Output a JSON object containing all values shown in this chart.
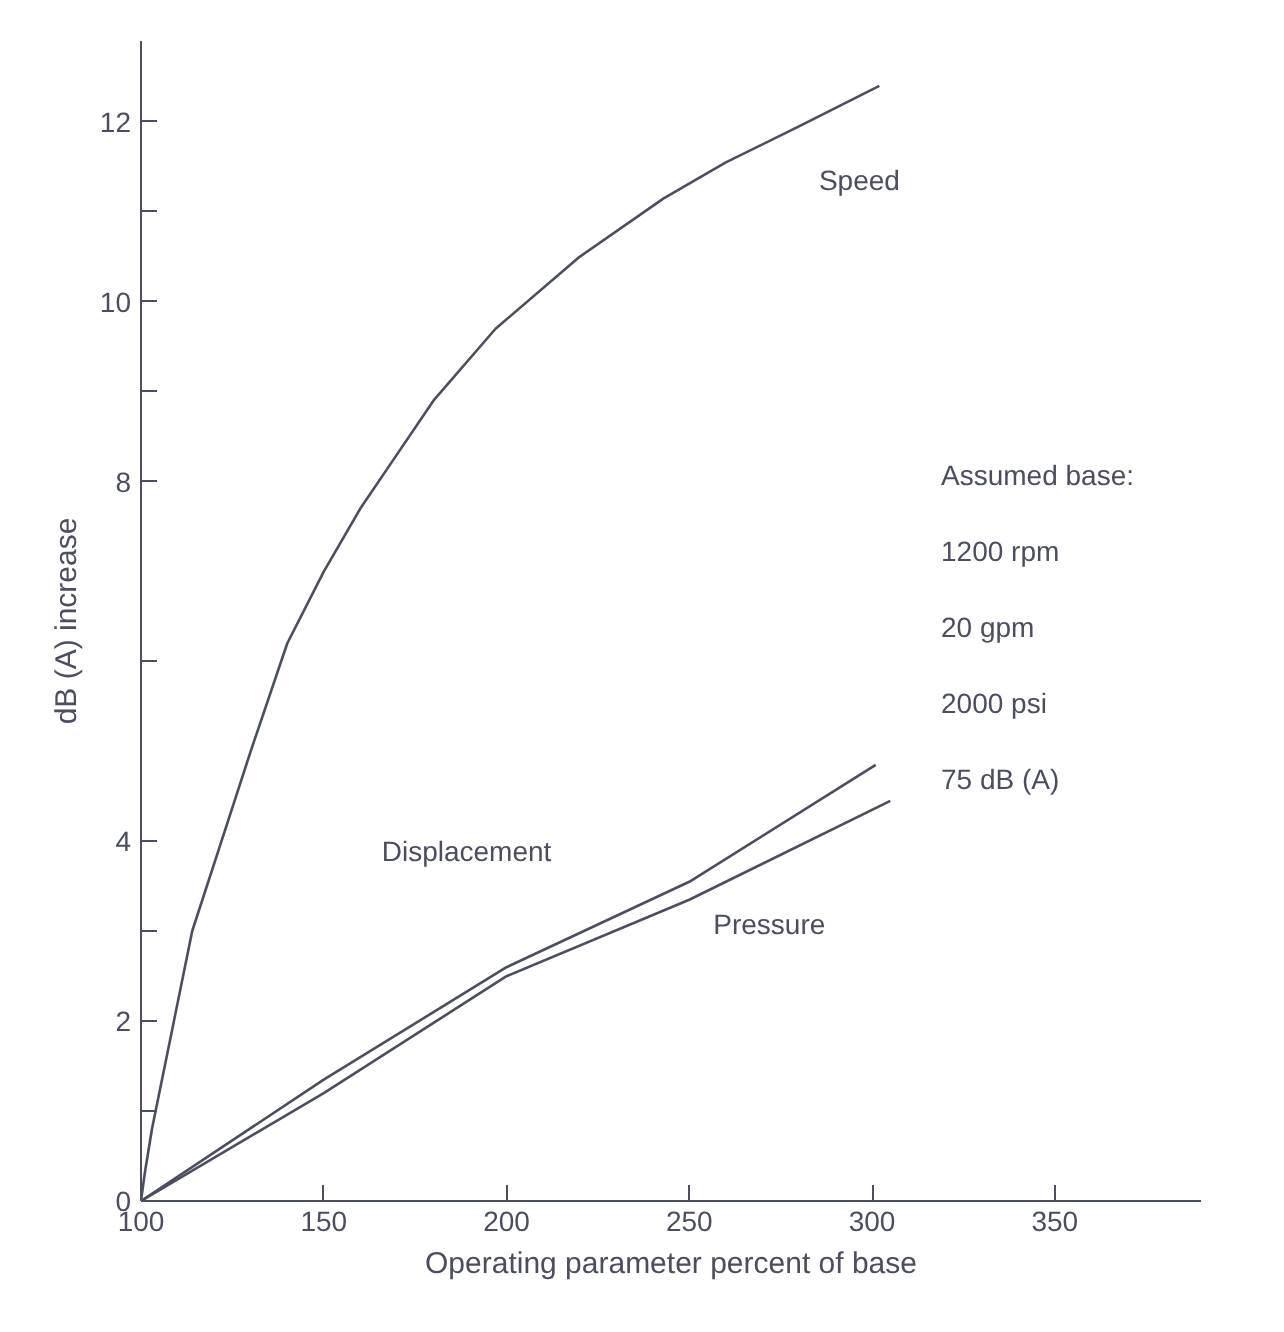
{
  "chart_data": {
    "type": "line",
    "xlabel": "Operating parameter percent of base",
    "ylabel": "dB (A) increase",
    "xlim": [
      100,
      390
    ],
    "ylim": [
      0,
      12.9
    ],
    "xticks": [
      100,
      150,
      200,
      250,
      300,
      350
    ],
    "yticks": [
      0,
      {
        "value": 1,
        "label": null
      },
      2,
      {
        "value": 3,
        "label": null
      },
      4,
      {
        "value": 6,
        "label": null
      },
      8,
      {
        "value": 9,
        "label": null
      },
      10,
      {
        "value": 11,
        "label": null
      },
      12
    ],
    "grid": false,
    "marker": "none",
    "line_style": "solid",
    "series": [
      {
        "name": "Speed",
        "color": "#4a4e5e",
        "x": [
          100,
          101,
          103,
          105,
          109,
          114,
          118,
          122,
          130,
          140,
          150,
          160,
          170,
          180,
          197,
          220,
          243,
          260,
          280,
          302
        ],
        "values": [
          0,
          0.3,
          0.8,
          1.2,
          2,
          3,
          3.5,
          4,
          5,
          6.2,
          7,
          7.7,
          8.3,
          8.9,
          9.7,
          10.5,
          11.15,
          11.55,
          11.95,
          12.4
        ]
      },
      {
        "name": "Displacement",
        "color": "#4a4e5e",
        "x": [
          100,
          150,
          200,
          250,
          301
        ],
        "values": [
          0,
          1.35,
          2.6,
          3.55,
          4.85
        ]
      },
      {
        "name": "Pressure",
        "color": "#4a4e5e",
        "x": [
          100,
          150,
          200,
          250,
          305
        ],
        "values": [
          0,
          1.2,
          2.5,
          3.35,
          4.45
        ]
      }
    ],
    "annotations": [
      "Assumed base:",
      "1200 rpm",
      "20 gpm",
      "2000 psi",
      "75 dB (A)"
    ]
  }
}
